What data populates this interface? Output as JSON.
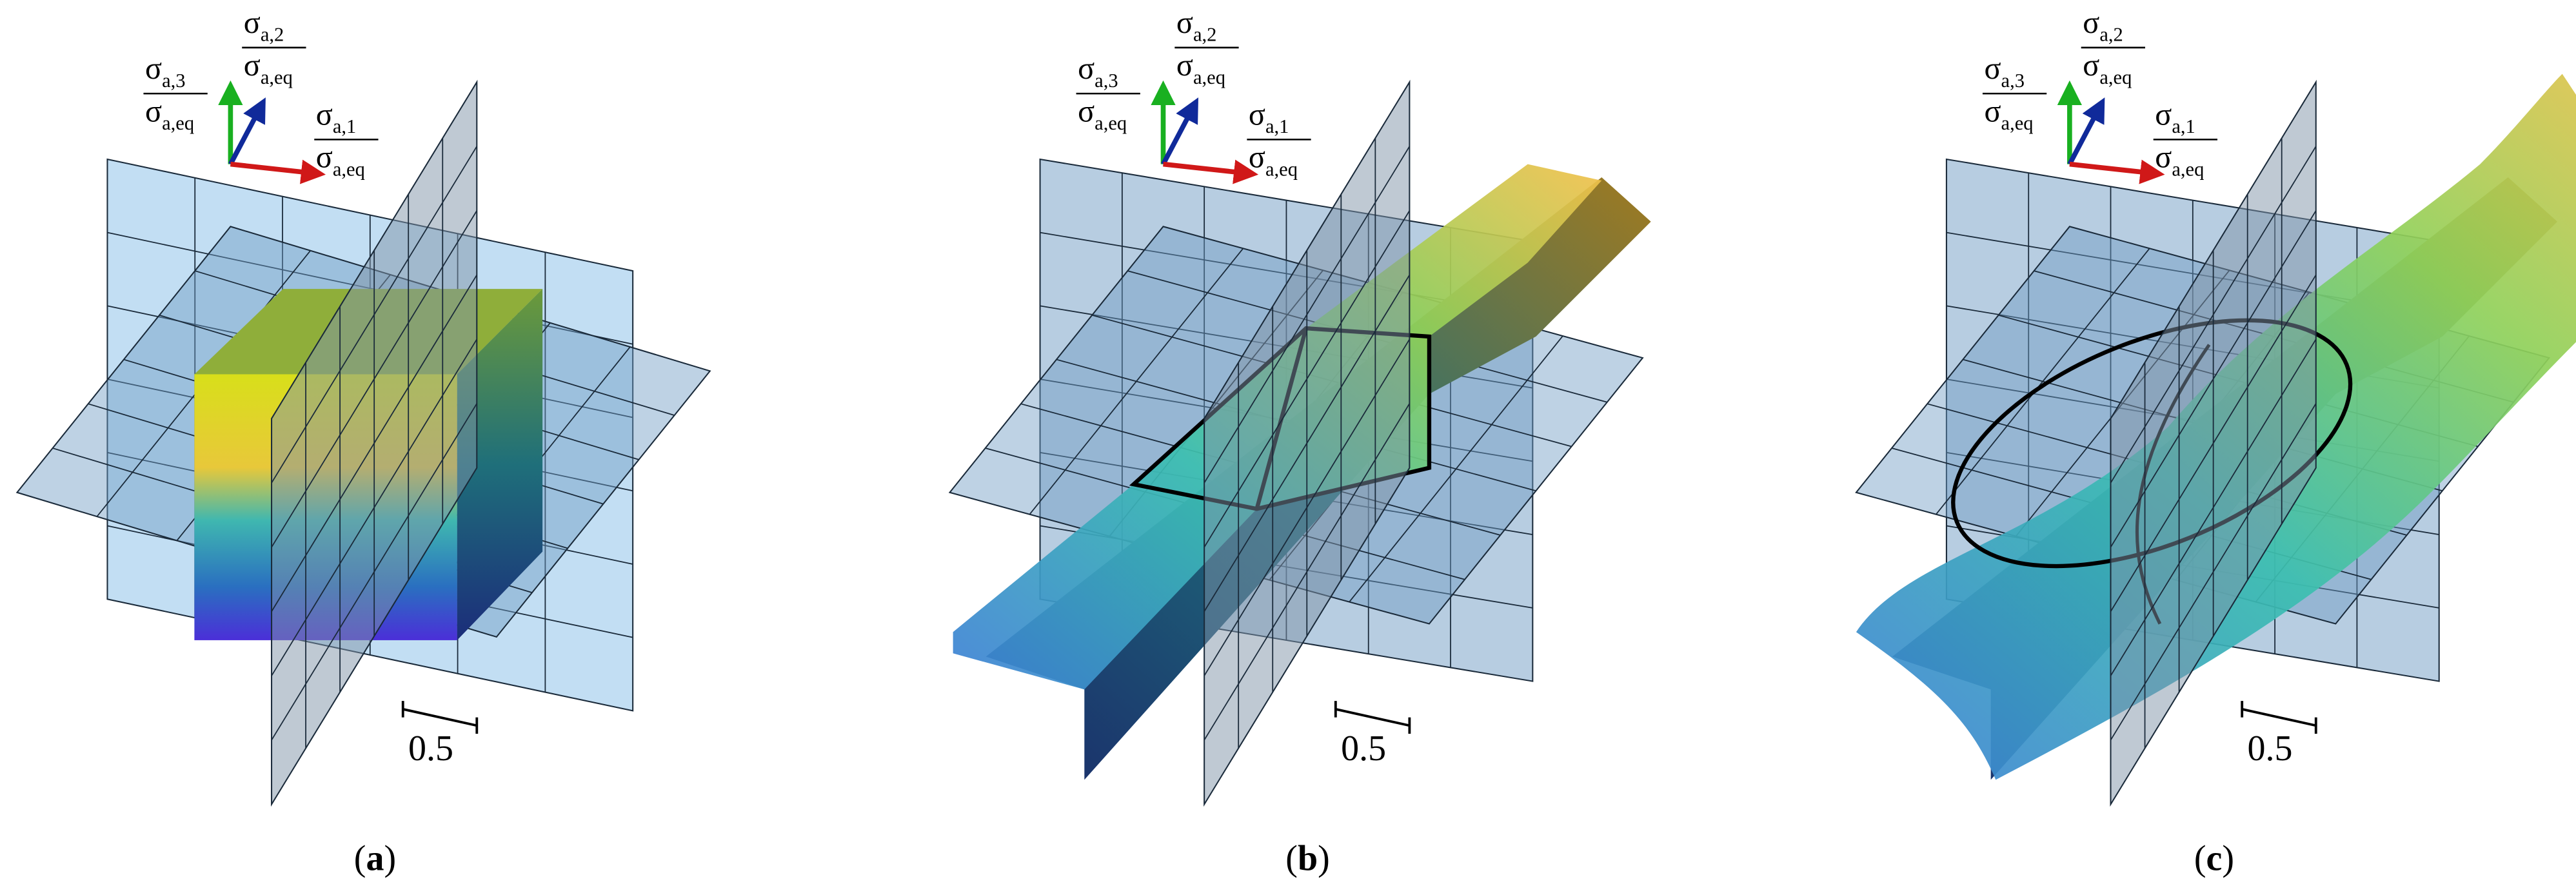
{
  "panels": [
    {
      "axes": [
        {
          "symbol": "σ",
          "sub": "a,3",
          "den_symbol": "σ",
          "den_sub": "a,eq"
        },
        {
          "symbol": "σ",
          "sub": "a,2",
          "den_symbol": "σ",
          "den_sub": "a,eq"
        },
        {
          "symbol": "σ",
          "sub": "a,1",
          "den_symbol": "σ",
          "den_sub": "a,eq"
        }
      ],
      "scale": "0.5",
      "caption": [
        "(",
        "a",
        ")"
      ]
    },
    {
      "axes": [
        {
          "symbol": "σ",
          "sub": "a,3",
          "den_symbol": "σ",
          "den_sub": "a,eq"
        },
        {
          "symbol": "σ",
          "sub": "a,2",
          "den_symbol": "σ",
          "den_sub": "a,eq"
        },
        {
          "symbol": "σ",
          "sub": "a,1",
          "den_symbol": "σ",
          "den_sub": "a,eq"
        }
      ],
      "scale": "0.5",
      "caption": [
        "(",
        "b",
        ")"
      ]
    },
    {
      "axes": [
        {
          "symbol": "σ",
          "sub": "a,3",
          "den_symbol": "σ",
          "den_sub": "a,eq"
        },
        {
          "symbol": "σ",
          "sub": "a,2",
          "den_symbol": "σ",
          "den_sub": "a,eq"
        },
        {
          "symbol": "σ",
          "sub": "a,1",
          "den_symbol": "σ",
          "den_sub": "a,eq"
        }
      ],
      "scale": "0.5",
      "caption": [
        "(",
        "c",
        ")"
      ]
    }
  ]
}
